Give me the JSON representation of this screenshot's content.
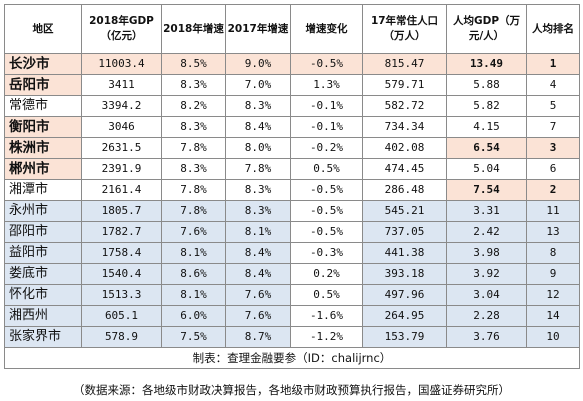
{
  "headers": [
    "地区",
    "2018年GDP（亿元）",
    "2018年增速",
    "2017年增速",
    "增速变化",
    "17年常住人口（万人）",
    "人均GDP（万元/人）",
    "人均排名"
  ],
  "rows": [
    {
      "region": "长沙市",
      "gdp2018": "11003.4",
      "g2018": "8.5%",
      "g2017": "9.0%",
      "change": "-0.5%",
      "pop": "815.47",
      "pcgdp": "13.49",
      "rank": "1"
    },
    {
      "region": "岳阳市",
      "gdp2018": "3411",
      "g2018": "8.3%",
      "g2017": "7.0%",
      "change": "1.3%",
      "pop": "579.71",
      "pcgdp": "5.88",
      "rank": "4"
    },
    {
      "region": "常德市",
      "gdp2018": "3394.2",
      "g2018": "8.2%",
      "g2017": "8.3%",
      "change": "-0.1%",
      "pop": "582.72",
      "pcgdp": "5.82",
      "rank": "5"
    },
    {
      "region": "衡阳市",
      "gdp2018": "3046",
      "g2018": "8.3%",
      "g2017": "8.4%",
      "change": "-0.1%",
      "pop": "734.34",
      "pcgdp": "4.15",
      "rank": "7"
    },
    {
      "region": "株洲市",
      "gdp2018": "2631.5",
      "g2018": "7.8%",
      "g2017": "8.0%",
      "change": "-0.2%",
      "pop": "402.08",
      "pcgdp": "6.54",
      "rank": "3"
    },
    {
      "region": "郴州市",
      "gdp2018": "2391.9",
      "g2018": "8.3%",
      "g2017": "7.8%",
      "change": "0.5%",
      "pop": "474.45",
      "pcgdp": "5.04",
      "rank": "6"
    },
    {
      "region": "湘潭市",
      "gdp2018": "2161.4",
      "g2018": "7.8%",
      "g2017": "8.3%",
      "change": "-0.5%",
      "pop": "286.48",
      "pcgdp": "7.54",
      "rank": "2"
    },
    {
      "region": "永州市",
      "gdp2018": "1805.7",
      "g2018": "7.8%",
      "g2017": "8.3%",
      "change": "-0.5%",
      "pop": "545.21",
      "pcgdp": "3.31",
      "rank": "11"
    },
    {
      "region": "邵阳市",
      "gdp2018": "1782.7",
      "g2018": "7.6%",
      "g2017": "8.1%",
      "change": "-0.5%",
      "pop": "737.05",
      "pcgdp": "2.42",
      "rank": "13"
    },
    {
      "region": "益阳市",
      "gdp2018": "1758.4",
      "g2018": "8.1%",
      "g2017": "8.4%",
      "change": "-0.3%",
      "pop": "441.38",
      "pcgdp": "3.98",
      "rank": "8"
    },
    {
      "region": "娄底市",
      "gdp2018": "1540.4",
      "g2018": "8.6%",
      "g2017": "8.4%",
      "change": "0.2%",
      "pop": "393.18",
      "pcgdp": "3.92",
      "rank": "9"
    },
    {
      "region": "怀化市",
      "gdp2018": "1513.3",
      "g2018": "8.1%",
      "g2017": "7.6%",
      "change": "0.5%",
      "pop": "497.96",
      "pcgdp": "3.04",
      "rank": "12"
    },
    {
      "region": "湘西州",
      "gdp2018": "605.1",
      "g2018": "6.0%",
      "g2017": "7.6%",
      "change": "-1.6%",
      "pop": "264.95",
      "pcgdp": "2.28",
      "rank": "14"
    },
    {
      "region": "张家界市",
      "gdp2018": "578.9",
      "g2018": "7.5%",
      "g2017": "8.7%",
      "change": "-1.2%",
      "pop": "153.79",
      "pcgdp": "3.76",
      "rank": "10"
    }
  ],
  "footer": "制表：查理金融要参（ID：chalijrnc）",
  "source": "（数据来源：各地级市财政决算报告，各地级市财政预算执行报告，国盛证券研究所）",
  "colors": {
    "highlight_pink": "#fbe3d6",
    "highlight_blue": "#dce6f2",
    "border": "#8a8a8a"
  }
}
